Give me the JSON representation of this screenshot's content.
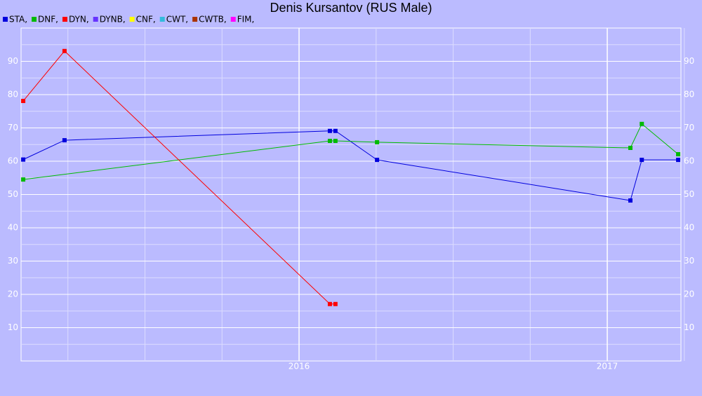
{
  "chart_data": {
    "type": "line",
    "title": "Denis Kursantov (RUS Male)",
    "xlim": [
      2015.098,
      2017.239
    ],
    "ylim": [
      0,
      100
    ],
    "xticks": [
      2016,
      2017
    ],
    "x_minor_ticks": [
      2015.25,
      2015.5,
      2015.75,
      2016.25,
      2016.5,
      2016.75,
      2017.25
    ],
    "yticks": [
      10,
      20,
      30,
      40,
      50,
      60,
      70,
      80,
      90
    ],
    "y_minor_ticks": [
      5,
      15,
      25,
      35,
      45,
      55,
      65,
      75,
      85,
      95
    ],
    "grid": true,
    "series": [
      {
        "name": "STA,",
        "color": "#0000dd",
        "x": [
          2015.105,
          2015.239,
          2016.1,
          2016.118,
          2016.253,
          2017.075,
          2017.112,
          2017.23
        ],
        "values": [
          60.5,
          66.3,
          69.1,
          69.1,
          60.4,
          48.2,
          60.4,
          60.4
        ]
      },
      {
        "name": "DNF,",
        "color": "#00bb00",
        "x": [
          2015.105,
          2016.1,
          2016.118,
          2016.253,
          2017.075,
          2017.112,
          2017.23
        ],
        "values": [
          54.5,
          66.1,
          66.1,
          65.7,
          64.0,
          71.2,
          62.1
        ]
      },
      {
        "name": "DYN,",
        "color": "#ff0000",
        "x": [
          2015.105,
          2015.239,
          2016.1,
          2016.118
        ],
        "values": [
          78.1,
          93.1,
          17.1,
          17.1
        ]
      },
      {
        "name": "DYNB,",
        "color": "#6633ff",
        "x": [],
        "values": []
      },
      {
        "name": "CNF,",
        "color": "#ffff00",
        "x": [],
        "values": []
      },
      {
        "name": "CWT,",
        "color": "#33bbdd",
        "x": [],
        "values": []
      },
      {
        "name": "CWTB,",
        "color": "#aa3300",
        "x": [],
        "values": []
      },
      {
        "name": "FIM,",
        "color": "#ff00ff",
        "x": [],
        "values": []
      }
    ]
  }
}
